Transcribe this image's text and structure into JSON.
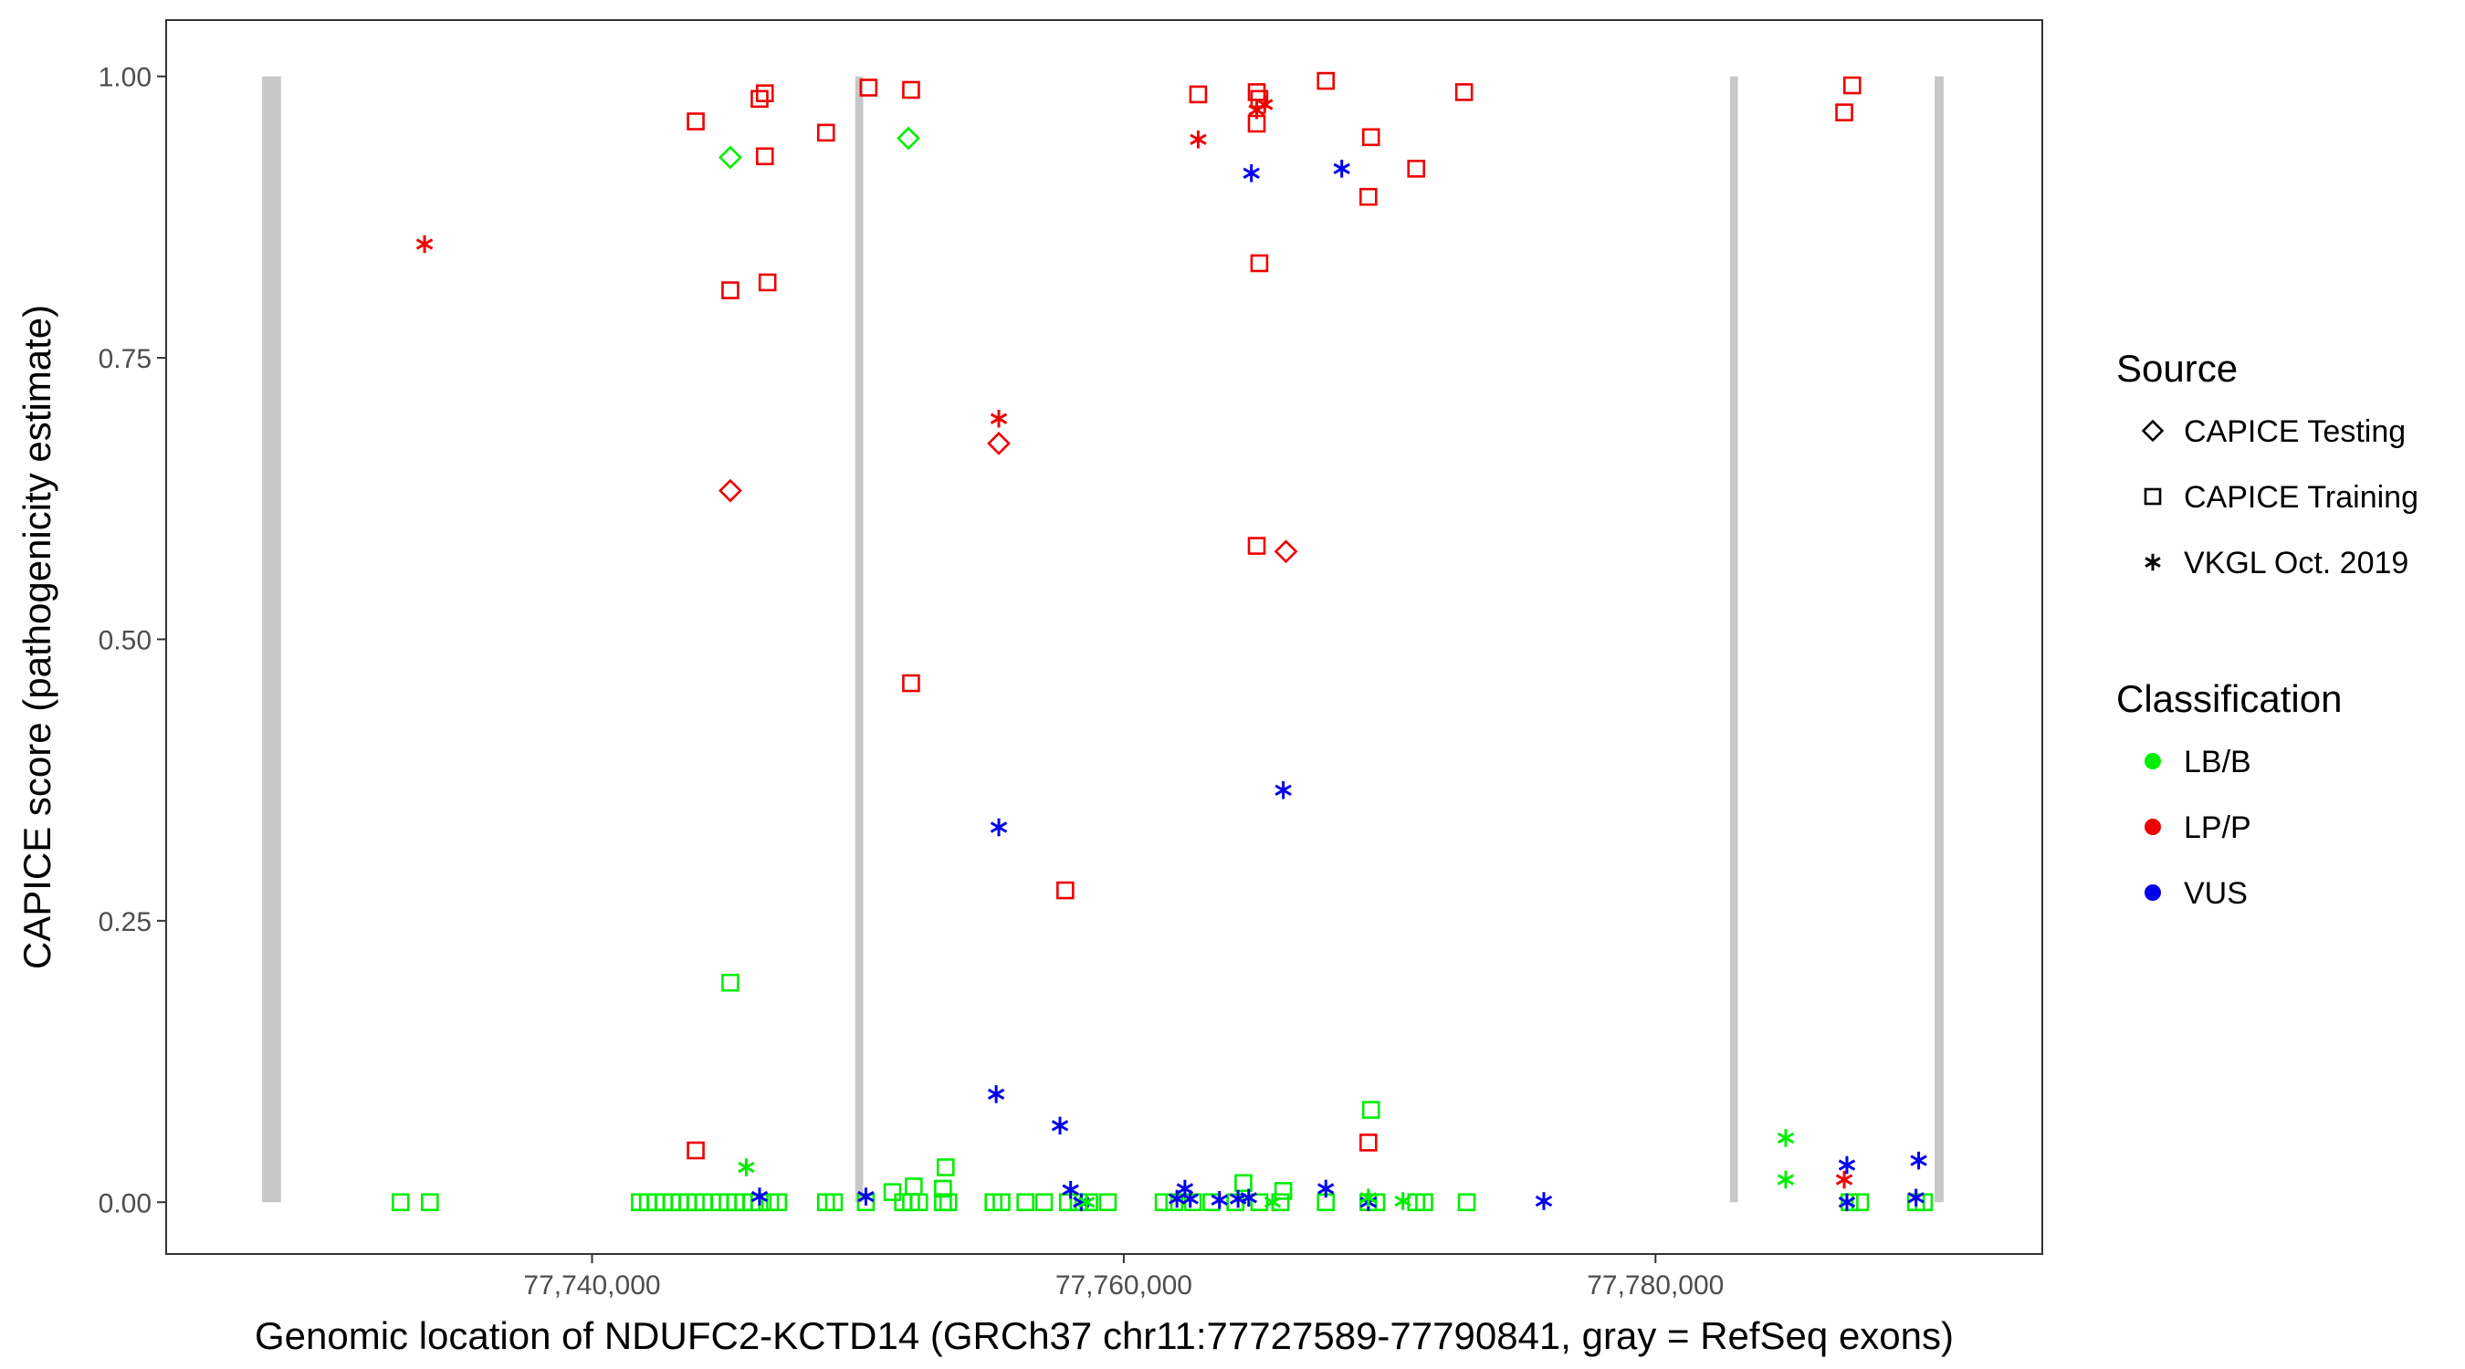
{
  "chart_data": {
    "type": "scatter",
    "title": "",
    "xlabel": "Genomic location of NDUFC2-KCTD14 (GRCh37 chr11:77727589-77790841, gray = RefSeq exons)",
    "ylabel": "CAPICE score (pathogenicity estimate)",
    "xlim": [
      77723980,
      77794550
    ],
    "ylim": [
      -0.046,
      1.05
    ],
    "x_ticks": [
      {
        "value": 77740000,
        "label": "77,740,000"
      },
      {
        "value": 77760000,
        "label": "77,760,000"
      },
      {
        "value": 77780000,
        "label": "77,780,000"
      }
    ],
    "y_ticks": [
      {
        "value": 0,
        "label": "0.00"
      },
      {
        "value": 0.25,
        "label": "0.25"
      },
      {
        "value": 0.5,
        "label": "0.50"
      },
      {
        "value": 0.75,
        "label": "0.75"
      },
      {
        "value": 1.0,
        "label": "1.00"
      }
    ],
    "grid": false,
    "legend_position": "right",
    "exons": [
      {
        "start": 77727589,
        "end": 77728300
      },
      {
        "start": 77749900,
        "end": 77750200
      },
      {
        "start": 77782800,
        "end": 77783100
      },
      {
        "start": 77790500,
        "end": 77790841
      }
    ],
    "legend": {
      "source": {
        "title": "Source",
        "items": [
          {
            "shape": "diamond",
            "label": "CAPICE Testing"
          },
          {
            "shape": "square",
            "label": "CAPICE Training"
          },
          {
            "shape": "asterisk",
            "label": "VKGL Oct. 2019"
          }
        ]
      },
      "classification": {
        "title": "Classification",
        "items": [
          {
            "label": "LB/B",
            "color": "#00ee00"
          },
          {
            "label": "LP/P",
            "color": "#ee0000"
          },
          {
            "label": "VUS",
            "color": "#0000ee"
          }
        ]
      }
    },
    "series": [
      {
        "source": "CAPICE Testing",
        "shape": "diamond",
        "classification": "LB/B",
        "color": "#00ee00",
        "points": [
          [
            77745200,
            0.928
          ],
          [
            77751900,
            0.945
          ]
        ]
      },
      {
        "source": "CAPICE Testing",
        "shape": "diamond",
        "classification": "LP/P",
        "color": "#ee0000",
        "points": [
          [
            77745200,
            0.632
          ],
          [
            77755300,
            0.674
          ],
          [
            77766100,
            0.578
          ]
        ]
      },
      {
        "source": "CAPICE Training",
        "shape": "square",
        "classification": "LP/P",
        "color": "#ee0000",
        "points": [
          [
            77743900,
            0.96
          ],
          [
            77746300,
            0.98
          ],
          [
            77746500,
            0.985
          ],
          [
            77746500,
            0.929
          ],
          [
            77748800,
            0.95
          ],
          [
            77750400,
            0.99
          ],
          [
            77752000,
            0.988
          ],
          [
            77762800,
            0.984
          ],
          [
            77765000,
            0.986
          ],
          [
            77765100,
            0.98
          ],
          [
            77765000,
            0.958
          ],
          [
            77767600,
            0.996
          ],
          [
            77769300,
            0.946
          ],
          [
            77769200,
            0.893
          ],
          [
            77771000,
            0.918
          ],
          [
            77772800,
            0.986
          ],
          [
            77765100,
            0.834
          ],
          [
            77745200,
            0.81
          ],
          [
            77746600,
            0.817
          ],
          [
            77765000,
            0.583
          ],
          [
            77752000,
            0.461
          ],
          [
            77757800,
            0.277
          ],
          [
            77743900,
            0.046
          ],
          [
            77769200,
            0.053
          ],
          [
            77787100,
            0.968
          ],
          [
            77787400,
            0.992
          ]
        ]
      },
      {
        "source": "CAPICE Training",
        "shape": "square",
        "classification": "LB/B",
        "color": "#00ee00",
        "points": [
          [
            77745200,
            0.195
          ],
          [
            77769300,
            0.082
          ],
          [
            77753300,
            0.031
          ],
          [
            77752100,
            0.014
          ],
          [
            77751300,
            0.009
          ],
          [
            77753200,
            0.012
          ],
          [
            77764500,
            0.017
          ],
          [
            77766000,
            0.01
          ],
          [
            77732800,
            0
          ],
          [
            77733900,
            0
          ],
          [
            77741800,
            0
          ],
          [
            77742100,
            0
          ],
          [
            77742400,
            0
          ],
          [
            77742700,
            0
          ],
          [
            77743000,
            0
          ],
          [
            77743300,
            0
          ],
          [
            77743600,
            0
          ],
          [
            77743900,
            0
          ],
          [
            77744200,
            0
          ],
          [
            77744800,
            0
          ],
          [
            77745100,
            0
          ],
          [
            77745400,
            0
          ],
          [
            77745700,
            0
          ],
          [
            77746000,
            0
          ],
          [
            77746300,
            0
          ],
          [
            77746700,
            0
          ],
          [
            77747000,
            0
          ],
          [
            77748800,
            0
          ],
          [
            77749100,
            0
          ],
          [
            77750300,
            0
          ],
          [
            77751700,
            0
          ],
          [
            77752000,
            0
          ],
          [
            77752300,
            0
          ],
          [
            77753200,
            0
          ],
          [
            77753400,
            0
          ],
          [
            77755100,
            0
          ],
          [
            77755400,
            0
          ],
          [
            77756300,
            0
          ],
          [
            77757000,
            0
          ],
          [
            77757900,
            0
          ],
          [
            77758300,
            0
          ],
          [
            77758700,
            0
          ],
          [
            77759400,
            0
          ],
          [
            77761500,
            0
          ],
          [
            77761900,
            0
          ],
          [
            77762600,
            0
          ],
          [
            77763300,
            0
          ],
          [
            77764200,
            0
          ],
          [
            77765100,
            0
          ],
          [
            77765900,
            0
          ],
          [
            77767600,
            0
          ],
          [
            77769200,
            0
          ],
          [
            77769500,
            0
          ],
          [
            77771000,
            0
          ],
          [
            77771300,
            0
          ],
          [
            77772900,
            0
          ],
          [
            77787300,
            0
          ],
          [
            77787700,
            0
          ],
          [
            77789800,
            0
          ],
          [
            77790100,
            0
          ]
        ]
      },
      {
        "source": "VKGL Oct. 2019",
        "shape": "asterisk",
        "classification": "LP/P",
        "color": "#ee0000",
        "points": [
          [
            77733700,
            0.851
          ],
          [
            77755300,
            0.696
          ],
          [
            77762800,
            0.944
          ],
          [
            77765000,
            0.97
          ],
          [
            77765300,
            0.975
          ],
          [
            77787100,
            0.02
          ]
        ]
      },
      {
        "source": "VKGL Oct. 2019",
        "shape": "asterisk",
        "classification": "VUS",
        "color": "#0000ee",
        "points": [
          [
            77764800,
            0.914
          ],
          [
            77768200,
            0.918
          ],
          [
            77766000,
            0.366
          ],
          [
            77755300,
            0.333
          ],
          [
            77755200,
            0.096
          ],
          [
            77757600,
            0.068
          ],
          [
            77758000,
            0.011
          ],
          [
            77767600,
            0.012
          ],
          [
            77762300,
            0.012
          ],
          [
            77746300,
            0.005
          ],
          [
            77750300,
            0.005
          ],
          [
            77758400,
            0
          ],
          [
            77762000,
            0.003
          ],
          [
            77762500,
            0.003
          ],
          [
            77763600,
            0.002
          ],
          [
            77764300,
            0.003
          ],
          [
            77764700,
            0.004
          ],
          [
            77769200,
            0
          ],
          [
            77775800,
            0.001
          ],
          [
            77787200,
            0.033
          ],
          [
            77789900,
            0.037
          ],
          [
            77789800,
            0.004
          ],
          [
            77787200,
            0
          ]
        ]
      },
      {
        "source": "VKGL Oct. 2019",
        "shape": "asterisk",
        "classification": "LB/B",
        "color": "#00ee00",
        "points": [
          [
            77745800,
            0.031
          ],
          [
            77758600,
            0
          ],
          [
            77765600,
            0
          ],
          [
            77769200,
            0.004
          ],
          [
            77770500,
            0.001
          ],
          [
            77784900,
            0.057
          ],
          [
            77784900,
            0.02
          ]
        ]
      }
    ]
  }
}
